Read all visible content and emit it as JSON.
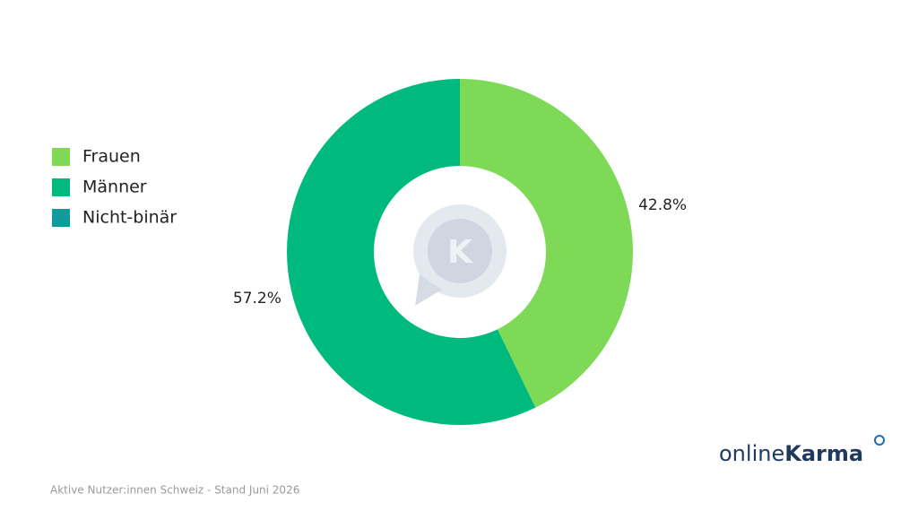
{
  "chart_data": {
    "type": "donut",
    "categories": [
      "Frauen",
      "Männer",
      "Nicht-binär"
    ],
    "values": [
      42.8,
      57.2,
      0
    ],
    "value_labels": [
      "42.8%",
      "57.2%",
      null
    ],
    "colors": [
      "#7ed957",
      "#00b97c",
      "#0f9b9b"
    ],
    "legend": "left",
    "caption": "Aktive Nutzer:innen Schweiz - Stand Juni 2026"
  },
  "brand": {
    "prefix": "online",
    "name": "Karma",
    "watermark": "K"
  }
}
